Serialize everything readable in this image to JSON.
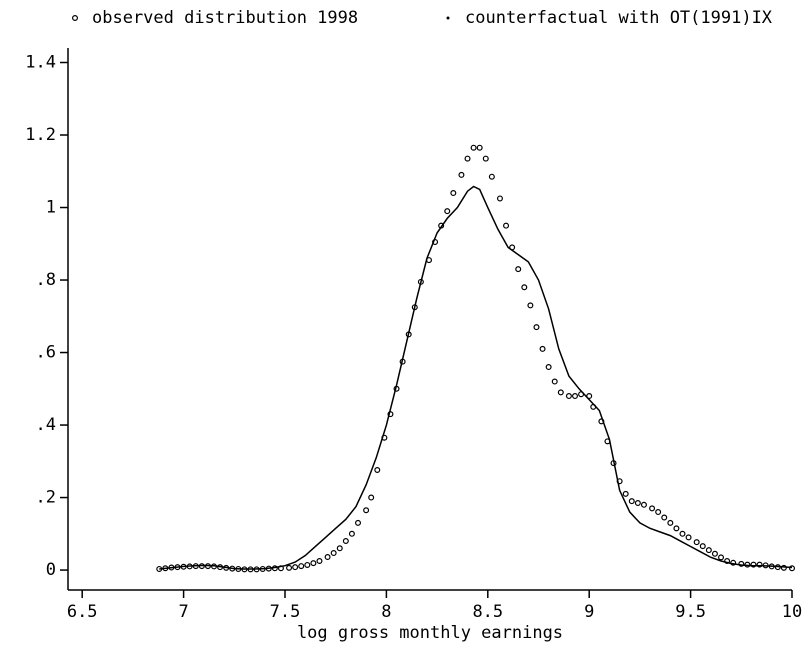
{
  "chart_data": {
    "type": "scatter",
    "xlabel": "log gross monthly earnings",
    "xlim": [
      6.43,
      10
    ],
    "xticks": [
      6.5,
      7,
      7.5,
      8,
      8.5,
      9,
      9.5,
      10
    ],
    "ylim": [
      -0.055,
      1.44
    ],
    "yticks": [
      0,
      {
        "value": 0.2,
        "label": ".2"
      },
      {
        "value": 0.4,
        "label": ".4"
      },
      {
        "value": 0.6,
        "label": ".6"
      },
      {
        "value": 0.8,
        "label": ".8"
      },
      1,
      1.2,
      1.4
    ],
    "series": [
      {
        "name": "observed distribution 1998",
        "type": "scatter",
        "color": "#000000",
        "x": [
          6.88,
          6.91,
          6.94,
          6.97,
          7.0,
          7.03,
          7.06,
          7.09,
          7.12,
          7.15,
          7.18,
          7.21,
          7.24,
          7.27,
          7.3,
          7.33,
          7.36,
          7.39,
          7.42,
          7.45,
          7.48,
          7.52,
          7.55,
          7.58,
          7.61,
          7.64,
          7.67,
          7.71,
          7.74,
          7.77,
          7.8,
          7.83,
          7.86,
          7.9,
          7.925,
          7.955,
          7.99,
          8.02,
          8.05,
          8.08,
          8.11,
          8.14,
          8.17,
          8.21,
          8.24,
          8.27,
          8.3,
          8.33,
          8.37,
          8.4,
          8.43,
          8.46,
          8.49,
          8.52,
          8.56,
          8.59,
          8.62,
          8.65,
          8.68,
          8.71,
          8.74,
          8.77,
          8.8,
          8.83,
          8.86,
          8.9,
          8.93,
          8.96,
          9.0,
          9.02,
          9.06,
          9.09,
          9.12,
          9.15,
          9.18,
          9.21,
          9.24,
          9.27,
          9.31,
          9.34,
          9.37,
          9.4,
          9.43,
          9.46,
          9.49,
          9.53,
          9.56,
          9.59,
          9.62,
          9.65,
          9.68,
          9.71,
          9.75,
          9.78,
          9.81,
          9.84,
          9.87,
          9.9,
          9.93,
          9.96,
          10.0
        ],
        "values": [
          0.003,
          0.005,
          0.007,
          0.008,
          0.009,
          0.01,
          0.011,
          0.011,
          0.011,
          0.01,
          0.008,
          0.006,
          0.004,
          0.003,
          0.002,
          0.002,
          0.002,
          0.003,
          0.004,
          0.005,
          0.005,
          0.006,
          0.008,
          0.011,
          0.014,
          0.019,
          0.025,
          0.036,
          0.047,
          0.06,
          0.08,
          0.1,
          0.13,
          0.165,
          0.2,
          0.276,
          0.365,
          0.43,
          0.5,
          0.575,
          0.65,
          0.725,
          0.795,
          0.855,
          0.905,
          0.95,
          0.99,
          1.04,
          1.09,
          1.135,
          1.165,
          1.165,
          1.135,
          1.085,
          1.025,
          0.95,
          0.89,
          0.83,
          0.78,
          0.73,
          0.67,
          0.61,
          0.56,
          0.52,
          0.49,
          0.48,
          0.48,
          0.485,
          0.48,
          0.45,
          0.41,
          0.355,
          0.295,
          0.245,
          0.21,
          0.19,
          0.185,
          0.18,
          0.17,
          0.16,
          0.145,
          0.13,
          0.115,
          0.1,
          0.09,
          0.077,
          0.066,
          0.055,
          0.045,
          0.035,
          0.025,
          0.02,
          0.017,
          0.015,
          0.015,
          0.015,
          0.013,
          0.01,
          0.008,
          0.006,
          0.005
        ]
      },
      {
        "name": "counterfactual with OT(1991)IX",
        "type": "line",
        "color": "#000000",
        "x": [
          6.88,
          6.95,
          7.0,
          7.05,
          7.1,
          7.15,
          7.2,
          7.25,
          7.3,
          7.35,
          7.4,
          7.45,
          7.5,
          7.55,
          7.6,
          7.65,
          7.7,
          7.75,
          7.8,
          7.85,
          7.9,
          7.95,
          8.0,
          8.05,
          8.1,
          8.15,
          8.2,
          8.25,
          8.3,
          8.35,
          8.4,
          8.43,
          8.46,
          8.5,
          8.55,
          8.6,
          8.65,
          8.7,
          8.75,
          8.8,
          8.85,
          8.9,
          8.95,
          9.0,
          9.05,
          9.1,
          9.15,
          9.2,
          9.25,
          9.3,
          9.35,
          9.4,
          9.45,
          9.5,
          9.55,
          9.6,
          9.65,
          9.7,
          9.75,
          9.8,
          9.85,
          9.9,
          9.95,
          10.0
        ],
        "values": [
          0.003,
          0.007,
          0.01,
          0.012,
          0.013,
          0.012,
          0.008,
          0.004,
          0.003,
          0.003,
          0.004,
          0.007,
          0.012,
          0.022,
          0.04,
          0.065,
          0.09,
          0.115,
          0.14,
          0.175,
          0.235,
          0.31,
          0.4,
          0.51,
          0.63,
          0.75,
          0.86,
          0.93,
          0.97,
          1.0,
          1.045,
          1.058,
          1.05,
          1.0,
          0.94,
          0.89,
          0.87,
          0.85,
          0.8,
          0.72,
          0.61,
          0.535,
          0.5,
          0.47,
          0.44,
          0.36,
          0.22,
          0.16,
          0.13,
          0.115,
          0.105,
          0.095,
          0.08,
          0.065,
          0.05,
          0.035,
          0.025,
          0.018,
          0.014,
          0.012,
          0.012,
          0.011,
          0.009,
          0.007
        ]
      }
    ]
  }
}
